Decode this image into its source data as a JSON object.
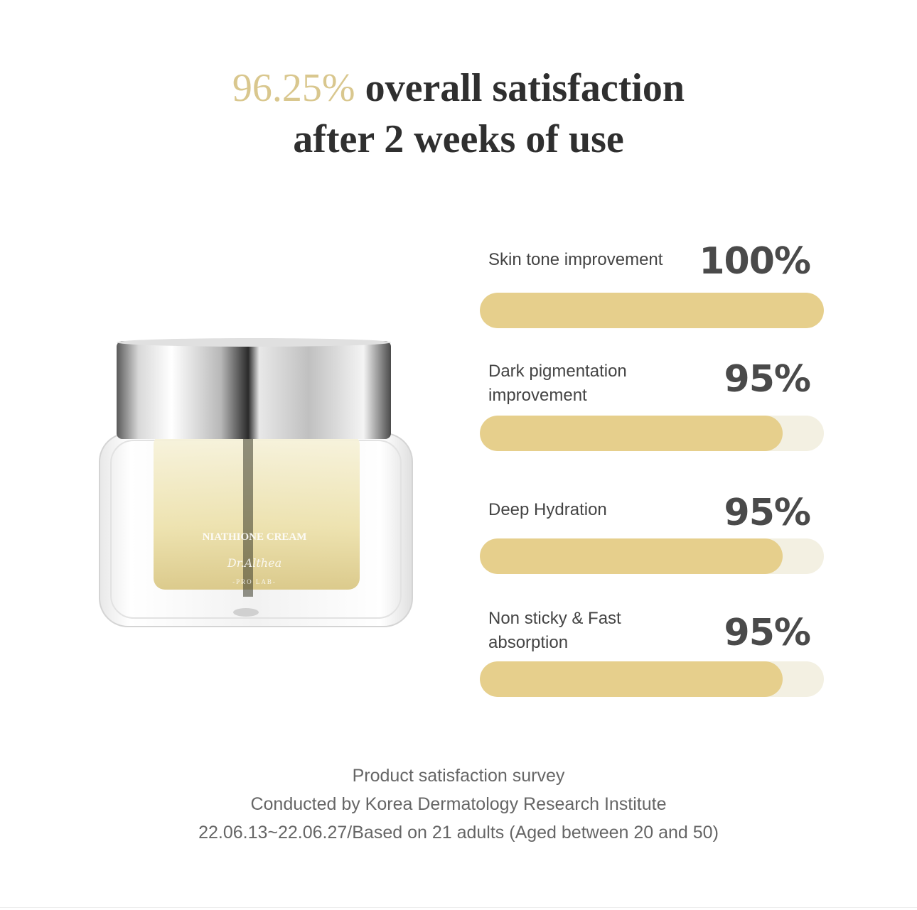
{
  "headline": {
    "percent": "96.25%",
    "line1_rest": " overall satisfaction",
    "line2": "after 2 weeks of use"
  },
  "product": {
    "name": "NIATHIONE CREAM",
    "brand": "Dr.Althea",
    "sub": "-PRO LAB-"
  },
  "stats": [
    {
      "label": "Skin tone improvement",
      "value": "100%",
      "level": 1.0
    },
    {
      "label": "Dark pigmentation improvement",
      "value": "95%",
      "level": 0.88
    },
    {
      "label": "Deep Hydration",
      "value": "95%",
      "level": 0.88
    },
    {
      "label": "Non sticky & Fast absorption",
      "value": "95%",
      "level": 0.88
    }
  ],
  "footer": {
    "line1": "Product satisfaction survey",
    "line2": "Conducted by Korea Dermatology Research Institute",
    "line3": "22.06.13~22.06.27/Based on 21 adults (Aged between 20 and 50)"
  },
  "colors": {
    "accent": "#d9c78e",
    "bar_fill": "#e6cf8c",
    "bar_track": "#f3f0e2"
  }
}
